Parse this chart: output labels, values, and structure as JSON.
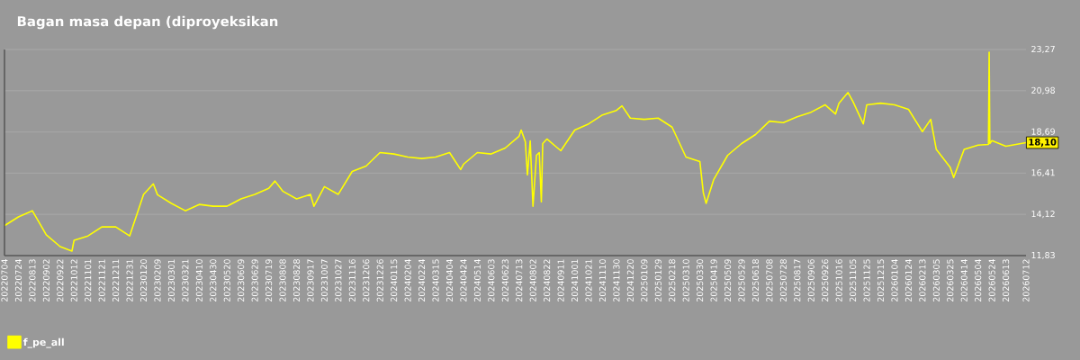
{
  "chart_data": {
    "type": "line",
    "title": "Bagan masa depan (diproyeksikan",
    "x": [
      "2022-07-04",
      "2022-07-24",
      "2022-08-13",
      "2022-09-02",
      "2022-09-22",
      "2022-10-09",
      "2022-10-12",
      "2022-11-01",
      "2022-11-21",
      "2022-12-11",
      "2022-12-31",
      "2023-01-20",
      "2023-02-03",
      "2023-02-09",
      "2023-03-01",
      "2023-03-21",
      "2023-04-10",
      "2023-04-30",
      "2023-05-20",
      "2023-06-09",
      "2023-06-29",
      "2023-07-19",
      "2023-07-28",
      "2023-08-08",
      "2023-08-28",
      "2023-09-17",
      "2023-09-22",
      "2023-10-07",
      "2023-10-27",
      "2023-11-16",
      "2023-12-06",
      "2023-12-26",
      "2024-01-15",
      "2024-02-04",
      "2024-02-24",
      "2024-03-15",
      "2024-04-04",
      "2024-04-20",
      "2024-04-24",
      "2024-05-14",
      "2024-06-03",
      "2024-06-23",
      "2024-07-13",
      "2024-07-16",
      "2024-07-22",
      "2024-07-25",
      "2024-07-29",
      "2024-08-02",
      "2024-08-07",
      "2024-08-11",
      "2024-08-14",
      "2024-08-16",
      "2024-08-22",
      "2024-09-11",
      "2024-10-01",
      "2024-10-21",
      "2024-11-10",
      "2024-11-30",
      "2024-12-08",
      "2024-12-20",
      "2025-01-09",
      "2025-01-29",
      "2025-02-18",
      "2025-03-10",
      "2025-03-30",
      "2025-04-04",
      "2025-04-08",
      "2025-04-19",
      "2025-05-09",
      "2025-05-29",
      "2025-06-18",
      "2025-07-08",
      "2025-07-28",
      "2025-08-17",
      "2025-09-06",
      "2025-09-26",
      "2025-10-11",
      "2025-10-16",
      "2025-10-29",
      "2025-11-05",
      "2025-11-20",
      "2025-11-25",
      "2025-12-15",
      "2026-01-04",
      "2026-01-24",
      "2026-02-13",
      "2026-02-25",
      "2026-03-05",
      "2026-03-25",
      "2026-03-30",
      "2026-04-14",
      "2026-05-04",
      "2026-05-19",
      "2026-05-20",
      "2026-05-21",
      "2026-05-24",
      "2026-06-13",
      "2026-07-12"
    ],
    "series": [
      {
        "name": "f_pe_all",
        "color": "#ffff00",
        "values": [
          13.49,
          13.98,
          14.32,
          12.99,
          12.33,
          12.08,
          12.68,
          12.92,
          13.42,
          13.42,
          12.92,
          15.23,
          15.81,
          15.21,
          14.73,
          14.32,
          14.67,
          14.57,
          14.57,
          14.98,
          15.23,
          15.56,
          15.97,
          15.41,
          14.98,
          15.23,
          14.57,
          15.66,
          15.23,
          16.5,
          16.8,
          17.55,
          17.47,
          17.3,
          17.22,
          17.3,
          17.55,
          16.61,
          16.9,
          17.55,
          17.47,
          17.8,
          18.46,
          18.8,
          18.15,
          16.31,
          18.2,
          14.57,
          17.4,
          17.55,
          14.82,
          18.05,
          18.3,
          17.65,
          18.8,
          19.14,
          19.64,
          19.89,
          20.14,
          19.46,
          19.39,
          19.46,
          18.96,
          17.3,
          17.05,
          15.31,
          14.73,
          16.06,
          17.4,
          18.05,
          18.55,
          19.29,
          19.21,
          19.54,
          19.79,
          20.2,
          19.69,
          20.29,
          20.88,
          20.39,
          19.14,
          20.2,
          20.29,
          20.2,
          19.95,
          18.71,
          19.39,
          17.72,
          16.72,
          16.16,
          17.72,
          17.96,
          18.0,
          23.12,
          18.05,
          18.21,
          17.9,
          18.1
        ]
      }
    ],
    "xlim": [
      "2022-07-04",
      "2026-07-12"
    ],
    "xticks": [
      {
        "value": "2022-07-04",
        "label": "20220704"
      },
      {
        "value": "2022-07-24",
        "label": "20220724"
      },
      {
        "value": "2022-08-13",
        "label": "20220813"
      },
      {
        "value": "2022-09-02",
        "label": "20220902"
      },
      {
        "value": "2022-09-22",
        "label": "20220922"
      },
      {
        "value": "2022-10-12",
        "label": "20221012"
      },
      {
        "value": "2022-11-01",
        "label": "20221101"
      },
      {
        "value": "2022-11-21",
        "label": "20221121"
      },
      {
        "value": "2022-12-11",
        "label": "20221211"
      },
      {
        "value": "2022-12-31",
        "label": "20221231"
      },
      {
        "value": "2023-01-20",
        "label": "20230120"
      },
      {
        "value": "2023-02-09",
        "label": "20230209"
      },
      {
        "value": "2023-03-01",
        "label": "20230301"
      },
      {
        "value": "2023-03-21",
        "label": "20230321"
      },
      {
        "value": "2023-04-10",
        "label": "20230410"
      },
      {
        "value": "2023-04-30",
        "label": "20230430"
      },
      {
        "value": "2023-05-20",
        "label": "20230520"
      },
      {
        "value": "2023-06-09",
        "label": "20230609"
      },
      {
        "value": "2023-06-29",
        "label": "20230629"
      },
      {
        "value": "2023-07-19",
        "label": "20230719"
      },
      {
        "value": "2023-08-08",
        "label": "20230808"
      },
      {
        "value": "2023-08-28",
        "label": "20230828"
      },
      {
        "value": "2023-09-17",
        "label": "20230917"
      },
      {
        "value": "2023-10-07",
        "label": "20231007"
      },
      {
        "value": "2023-10-27",
        "label": "20231027"
      },
      {
        "value": "2023-11-16",
        "label": "20231116"
      },
      {
        "value": "2023-12-06",
        "label": "20231206"
      },
      {
        "value": "2023-12-26",
        "label": "20231226"
      },
      {
        "value": "2024-01-15",
        "label": "20240115"
      },
      {
        "value": "2024-02-04",
        "label": "20240204"
      },
      {
        "value": "2024-02-24",
        "label": "20240224"
      },
      {
        "value": "2024-03-15",
        "label": "20240315"
      },
      {
        "value": "2024-04-04",
        "label": "20240404"
      },
      {
        "value": "2024-04-24",
        "label": "20240424"
      },
      {
        "value": "2024-05-14",
        "label": "20240514"
      },
      {
        "value": "2024-06-03",
        "label": "20240603"
      },
      {
        "value": "2024-06-23",
        "label": "20240623"
      },
      {
        "value": "2024-07-13",
        "label": "20240713"
      },
      {
        "value": "2024-08-02",
        "label": "20240802"
      },
      {
        "value": "2024-08-22",
        "label": "20240822"
      },
      {
        "value": "2024-09-11",
        "label": "20240911"
      },
      {
        "value": "2024-10-01",
        "label": "20241001"
      },
      {
        "value": "2024-10-21",
        "label": "20241021"
      },
      {
        "value": "2024-11-10",
        "label": "20241110"
      },
      {
        "value": "2024-11-30",
        "label": "20241130"
      },
      {
        "value": "2024-12-20",
        "label": "20241220"
      },
      {
        "value": "2025-01-09",
        "label": "20250109"
      },
      {
        "value": "2025-01-29",
        "label": "20250129"
      },
      {
        "value": "2025-02-18",
        "label": "20250218"
      },
      {
        "value": "2025-03-10",
        "label": "20250310"
      },
      {
        "value": "2025-03-30",
        "label": "20250330"
      },
      {
        "value": "2025-04-19",
        "label": "20250419"
      },
      {
        "value": "2025-05-09",
        "label": "20250509"
      },
      {
        "value": "2025-05-29",
        "label": "20250529"
      },
      {
        "value": "2025-06-18",
        "label": "20250618"
      },
      {
        "value": "2025-07-08",
        "label": "20250708"
      },
      {
        "value": "2025-07-28",
        "label": "20250728"
      },
      {
        "value": "2025-08-17",
        "label": "20250817"
      },
      {
        "value": "2025-09-06",
        "label": "20250906"
      },
      {
        "value": "2025-09-26",
        "label": "20250926"
      },
      {
        "value": "2025-10-16",
        "label": "20251016"
      },
      {
        "value": "2025-11-05",
        "label": "20251105"
      },
      {
        "value": "2025-11-25",
        "label": "20251125"
      },
      {
        "value": "2025-12-15",
        "label": "20251215"
      },
      {
        "value": "2026-01-04",
        "label": "20260104"
      },
      {
        "value": "2026-01-24",
        "label": "20260124"
      },
      {
        "value": "2026-02-13",
        "label": "20260213"
      },
      {
        "value": "2026-03-05",
        "label": "20260305"
      },
      {
        "value": "2026-03-25",
        "label": "20260325"
      },
      {
        "value": "2026-04-14",
        "label": "20260414"
      },
      {
        "value": "2026-05-04",
        "label": "20260504"
      },
      {
        "value": "2026-05-24",
        "label": "20260524"
      },
      {
        "value": "2026-06-13",
        "label": "20260613"
      },
      {
        "value": "2026-07-12",
        "label": "20260712"
      }
    ],
    "ylim": [
      11.83,
      23.27
    ],
    "yticks": [
      {
        "value": 11.83,
        "label": "11,83"
      },
      {
        "value": 14.12,
        "label": "14,12"
      },
      {
        "value": 16.41,
        "label": "16,41"
      },
      {
        "value": 18.69,
        "label": "18,69"
      },
      {
        "value": 20.98,
        "label": "20,98"
      },
      {
        "value": 23.27,
        "label": "23,27"
      }
    ],
    "annotations": [
      {
        "text": "18,10",
        "x": "2026-07-12",
        "y": 18.1
      }
    ],
    "grid": "y",
    "legend": "bottom left"
  }
}
